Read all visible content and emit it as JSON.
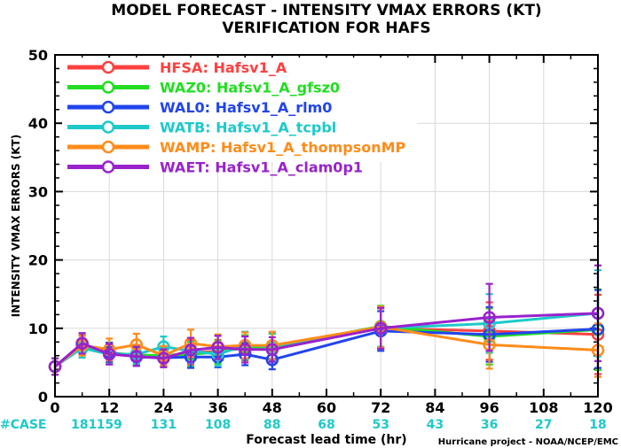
{
  "chart_data": {
    "type": "line",
    "title": "MODEL FORECAST - INTENSITY VMAX ERRORS (KT)",
    "subtitle": "VERIFICATION FOR HAFS",
    "xlabel": "Forecast lead time (hr)",
    "ylabel": "INTENSITY VMAX ERRORS (KT)",
    "xlim": [
      0,
      120
    ],
    "ylim": [
      0,
      50
    ],
    "x_ticks": [
      "0",
      "12",
      "24",
      "36",
      "48",
      "60",
      "72",
      "84",
      "96",
      "108",
      "120"
    ],
    "y_ticks": [
      "0",
      "10",
      "20",
      "30",
      "40",
      "50"
    ],
    "legend_position": "top-left",
    "case_label": "#CASE",
    "case_counts": [
      {
        "x": 0,
        "n": "181"
      },
      {
        "x": 12,
        "n": "159"
      },
      {
        "x": 24,
        "n": "131"
      },
      {
        "x": 36,
        "n": "108"
      },
      {
        "x": 48,
        "n": "88"
      },
      {
        "x": 60,
        "n": "68"
      },
      {
        "x": 72,
        "n": "53"
      },
      {
        "x": 84,
        "n": "43"
      },
      {
        "x": 96,
        "n": "36"
      },
      {
        "x": 108,
        "n": "27"
      },
      {
        "x": 120,
        "n": "18"
      }
    ],
    "credit": "Hurricane project - NOAA/NCEP/EMC",
    "series": [
      {
        "name": "HFSA:  Hafsv1_A",
        "color": "#ff4040",
        "x": [
          0,
          6,
          12,
          18,
          24,
          30,
          36,
          42,
          48,
          72,
          96,
          120
        ],
        "y": [
          4.4,
          7.5,
          6.3,
          6.0,
          5.9,
          6.5,
          6.6,
          7.1,
          7.4,
          10.0,
          9.6,
          9.1
        ],
        "err": [
          1.2,
          1.4,
          1.5,
          1.4,
          1.4,
          1.8,
          1.7,
          1.8,
          1.9,
          2.9,
          4.2,
          5.8
        ]
      },
      {
        "name": "WAZ0:  Hafsv1_A_gfsz0",
        "color": "#22dd22",
        "x": [
          0,
          6,
          12,
          18,
          24,
          30,
          36,
          42,
          48,
          72,
          96,
          120
        ],
        "y": [
          4.4,
          7.6,
          6.4,
          6.1,
          6.0,
          6.2,
          6.5,
          7.2,
          7.3,
          10.3,
          8.8,
          9.8
        ],
        "err": [
          1.2,
          1.5,
          1.5,
          1.4,
          1.4,
          1.8,
          1.7,
          1.8,
          1.9,
          3.0,
          4.1,
          5.9
        ]
      },
      {
        "name": "WAL0:  Hafsv1_A_rlm0",
        "color": "#2244ee",
        "x": [
          0,
          6,
          12,
          18,
          24,
          30,
          36,
          42,
          48,
          72,
          96,
          120
        ],
        "y": [
          4.4,
          7.7,
          6.5,
          5.8,
          5.7,
          5.8,
          5.8,
          6.2,
          5.4,
          9.6,
          9.1,
          9.9
        ],
        "err": [
          1.2,
          1.4,
          1.4,
          1.3,
          1.3,
          1.6,
          1.5,
          1.6,
          1.4,
          2.9,
          4.0,
          5.7
        ]
      },
      {
        "name": "WATB:  Hafsv1_A_tcpbl",
        "color": "#1ec9c9",
        "x": [
          0,
          6,
          12,
          18,
          24,
          30,
          36,
          42,
          48,
          72,
          96,
          120
        ],
        "y": [
          4.4,
          7.1,
          6.2,
          6.2,
          7.3,
          6.7,
          6.2,
          7.5,
          7.4,
          10.0,
          10.7,
          12.2
        ],
        "err": [
          1.2,
          1.4,
          1.4,
          1.4,
          1.5,
          1.8,
          1.7,
          2.0,
          1.9,
          3.0,
          4.3,
          6.3
        ]
      },
      {
        "name": "WAMP:  Hafsv1_A_thompsonMP",
        "color": "#ff8c1a",
        "x": [
          0,
          6,
          12,
          18,
          24,
          30,
          36,
          42,
          48,
          72,
          96,
          120
        ],
        "y": [
          4.4,
          7.5,
          6.9,
          7.6,
          6.0,
          7.8,
          7.3,
          7.5,
          7.5,
          10.2,
          7.6,
          6.8
        ],
        "err": [
          1.2,
          1.5,
          1.6,
          1.6,
          1.4,
          2.0,
          1.8,
          1.9,
          2.0,
          3.0,
          3.5,
          3.9
        ]
      },
      {
        "name": "WAET:  Hafsv1_A_clam0p1",
        "color": "#9922cc",
        "x": [
          0,
          6,
          12,
          18,
          24,
          30,
          36,
          42,
          48,
          72,
          96,
          120
        ],
        "y": [
          4.4,
          7.8,
          6.2,
          5.9,
          5.6,
          6.8,
          7.2,
          6.9,
          6.9,
          10.0,
          11.6,
          12.2
        ],
        "err": [
          1.2,
          1.5,
          1.5,
          1.4,
          1.3,
          1.8,
          1.7,
          1.9,
          1.8,
          3.0,
          4.9,
          7.0
        ]
      }
    ]
  }
}
